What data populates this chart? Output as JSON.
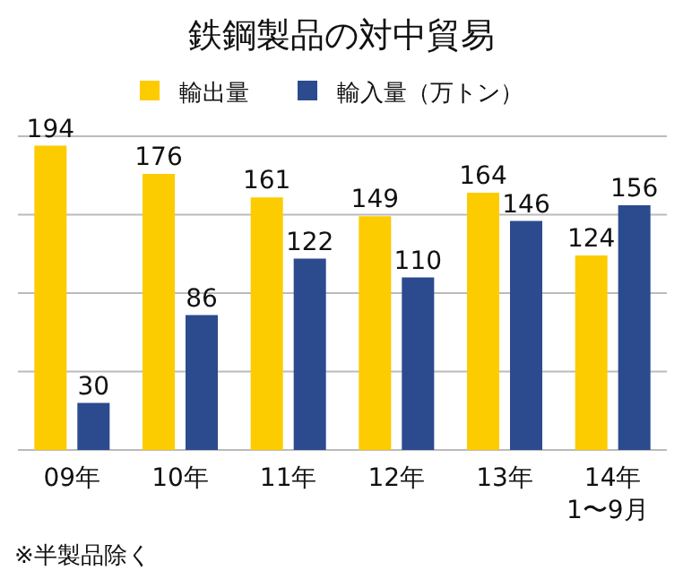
{
  "chart_data": {
    "type": "bar",
    "title": "鉄鋼製品の対中貿易",
    "categories": [
      "09年",
      "10年",
      "11年",
      "12年",
      "13年",
      "14年\n1〜9月"
    ],
    "series": [
      {
        "name": "輸出量",
        "color": "#fccb00",
        "values": [
          194,
          176,
          161,
          149,
          164,
          124
        ]
      },
      {
        "name": "輸入量（万トン）",
        "color": "#2c4a8e",
        "values": [
          30,
          86,
          122,
          110,
          146,
          156
        ]
      }
    ],
    "ylim": [
      0,
      200
    ],
    "yticks": [
      {
        "value": 0,
        "label": null
      },
      {
        "value": 50,
        "label": null
      },
      {
        "value": 100,
        "label": null
      },
      {
        "value": 150,
        "label": null
      },
      {
        "value": 200,
        "label": null
      }
    ],
    "grid": "y",
    "legend": "top",
    "data_labels": true,
    "annotations": [
      "※半製品除く"
    ]
  }
}
